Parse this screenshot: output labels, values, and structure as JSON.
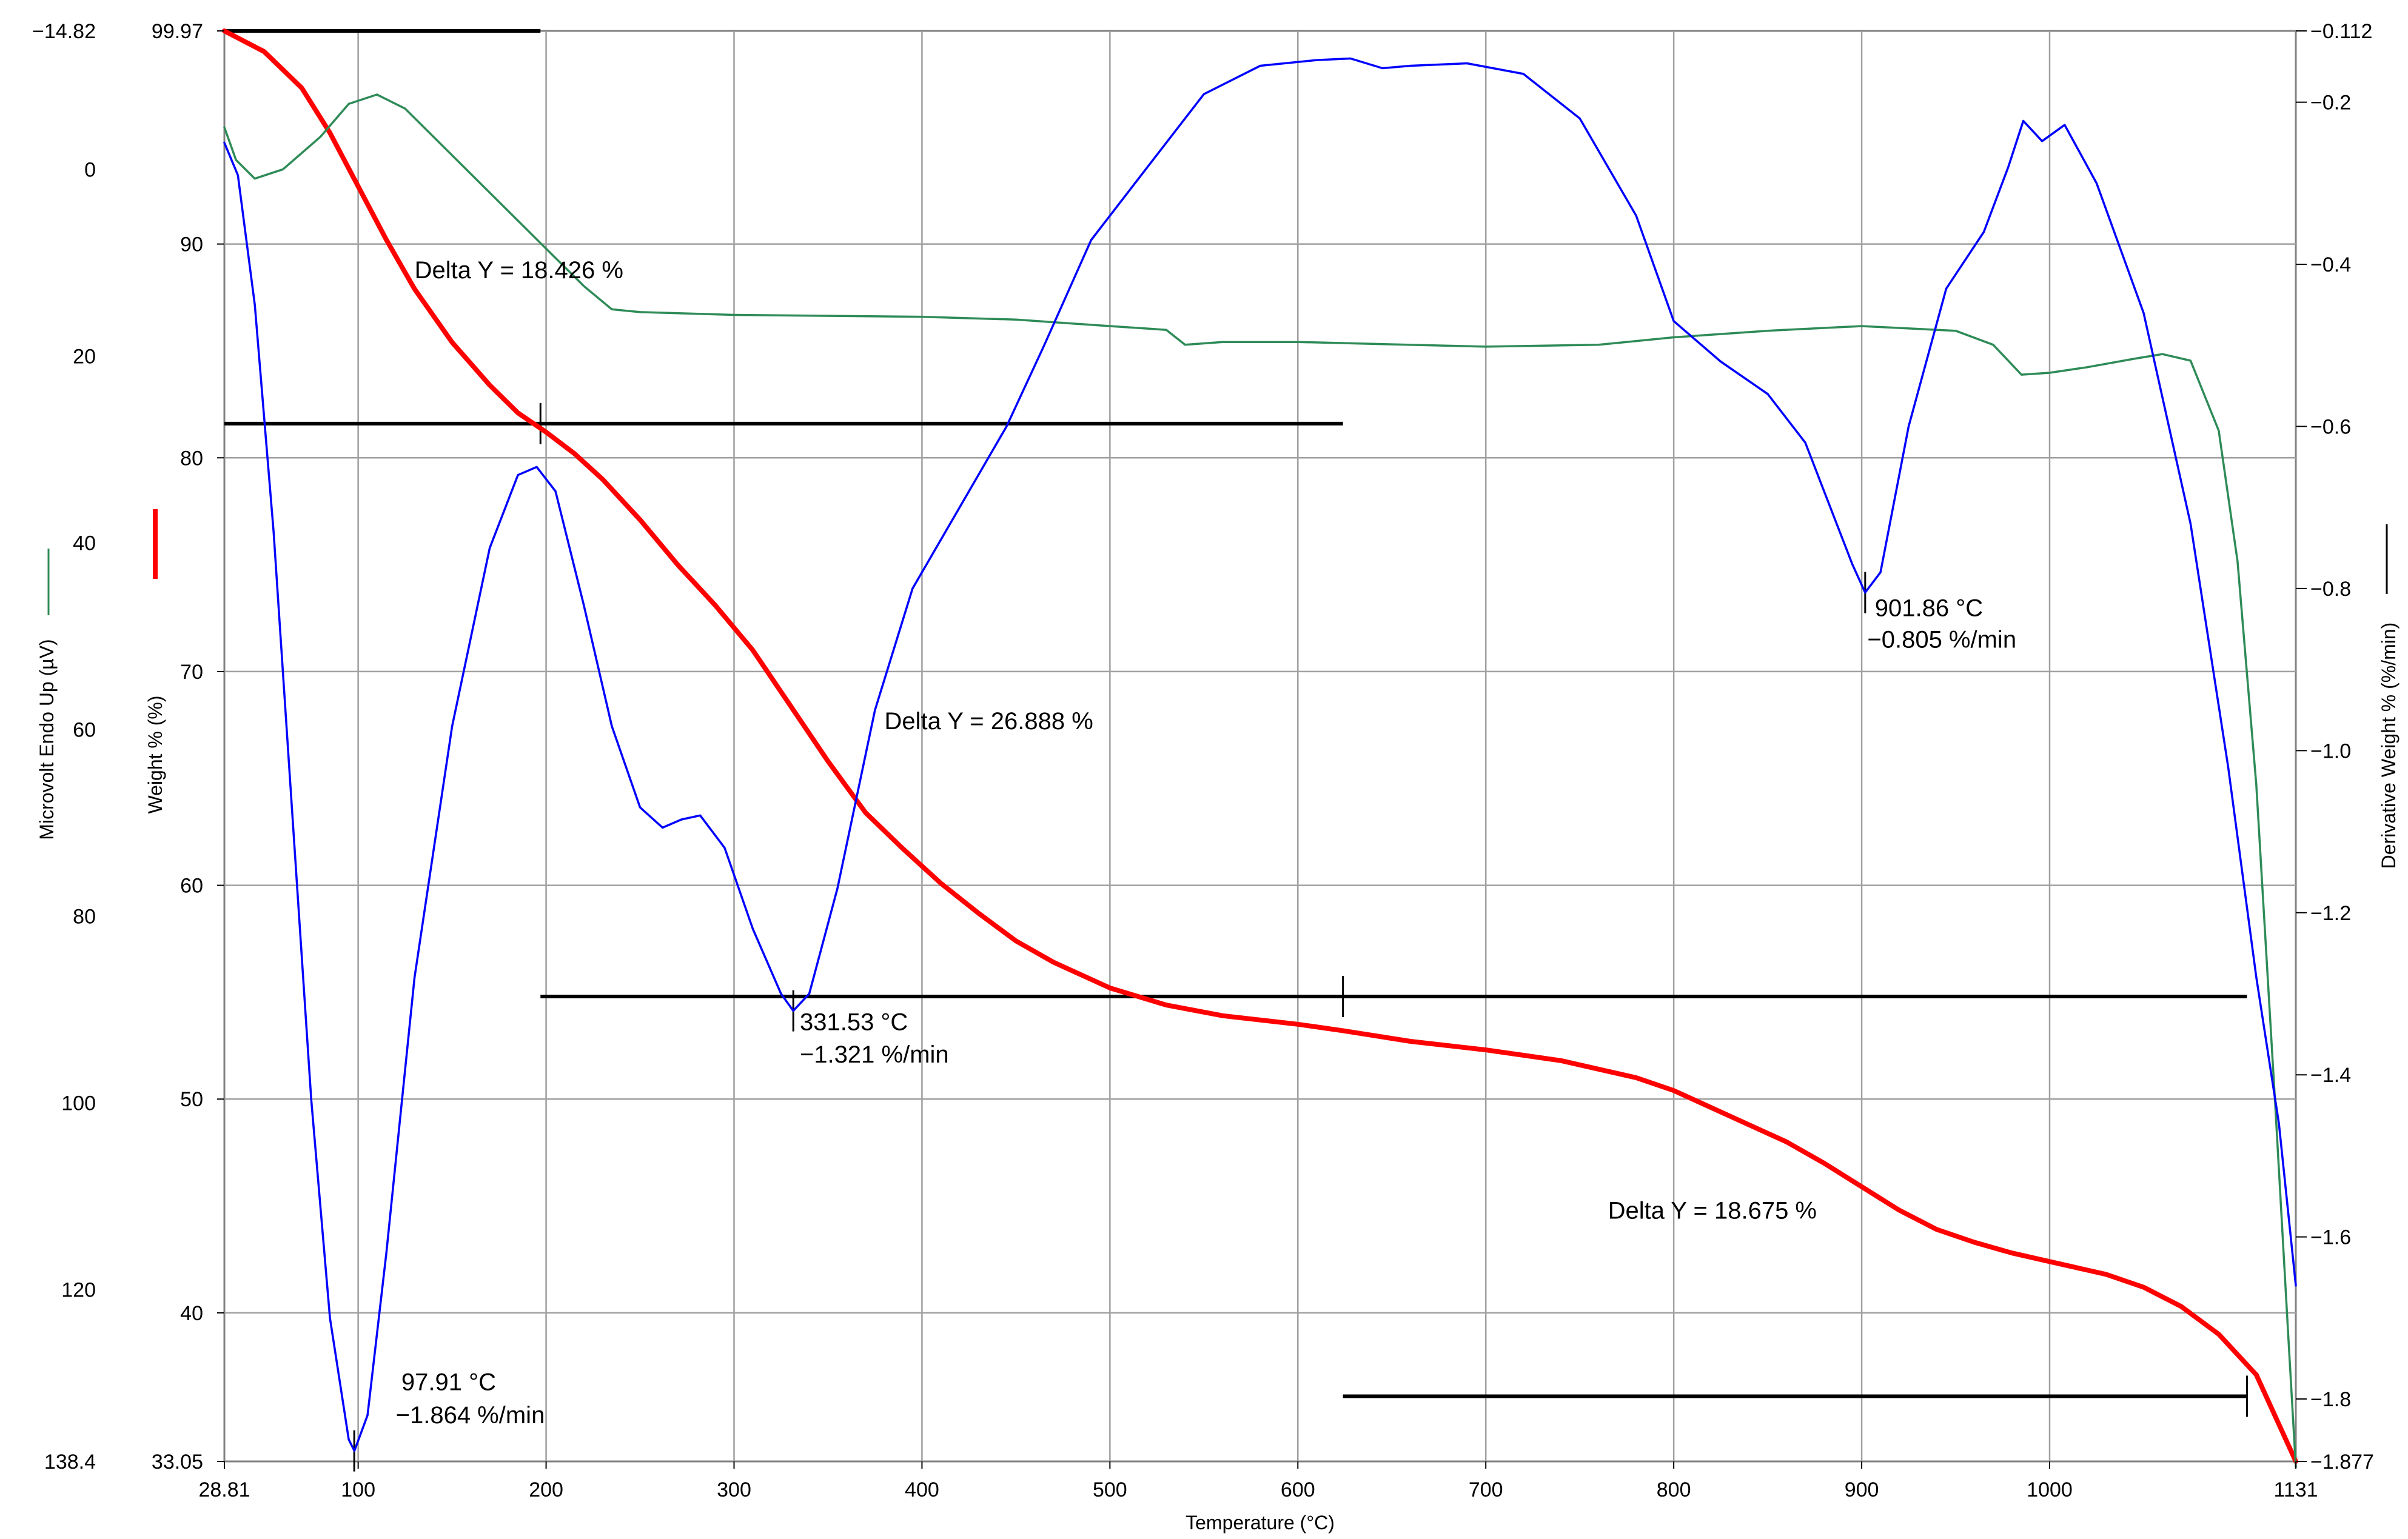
{
  "chart_data": {
    "type": "line",
    "title": "",
    "x_axis": {
      "label": "Temperature (°C)",
      "range": [
        28.81,
        1131
      ],
      "ticks": [
        100,
        200,
        300,
        400,
        500,
        600,
        700,
        800,
        900,
        1000
      ],
      "tick_labels": [
        "28.81",
        "100",
        "200",
        "300",
        "400",
        "500",
        "600",
        "700",
        "800",
        "900",
        "1000",
        "1131"
      ]
    },
    "axes": {
      "microvolt": {
        "label": "Microvolt Endo Up (µV)",
        "position": "far-left",
        "range_top": -14.82,
        "range_bottom": 138.4,
        "tick_labels": [
          "−14.82",
          "0",
          "20",
          "40",
          "60",
          "80",
          "100",
          "120",
          "138.4"
        ],
        "tick_values": [
          -14.82,
          0,
          20,
          40,
          60,
          80,
          100,
          120,
          138.4
        ]
      },
      "weight": {
        "label": "Weight % (%)",
        "position": "left",
        "range_top": 99.97,
        "range_bottom": 33.05,
        "tick_labels": [
          "99.97",
          "90",
          "80",
          "70",
          "60",
          "50",
          "40",
          "33.05"
        ],
        "tick_values": [
          99.97,
          90,
          80,
          70,
          60,
          50,
          40,
          33.05
        ]
      },
      "derivative": {
        "label": "Derivative Weight % (%/min)",
        "position": "right",
        "range_top": -0.112,
        "range_bottom": -1.877,
        "tick_labels": [
          "−0.112",
          "−0.2",
          "−0.4",
          "−0.6",
          "−0.8",
          "−1.0",
          "−1.2",
          "−1.4",
          "−1.6",
          "−1.8",
          "−1.877"
        ],
        "tick_values": [
          -0.112,
          -0.2,
          -0.4,
          -0.6,
          -0.8,
          -1.0,
          -1.2,
          -1.4,
          -1.6,
          -1.8,
          -1.877
        ]
      }
    },
    "series": [
      {
        "name": "Weight %",
        "axis": "weight",
        "color": "#ff0000",
        "points": [
          [
            28.81,
            99.97
          ],
          [
            50,
            99.0
          ],
          [
            70,
            97.3
          ],
          [
            85,
            95.2
          ],
          [
            100,
            92.7
          ],
          [
            115,
            90.2
          ],
          [
            130,
            87.9
          ],
          [
            150,
            85.4
          ],
          [
            170,
            83.4
          ],
          [
            185,
            82.1
          ],
          [
            200,
            81.2
          ],
          [
            215,
            80.2
          ],
          [
            230,
            79.0
          ],
          [
            250,
            77.1
          ],
          [
            270,
            75.0
          ],
          [
            290,
            73.1
          ],
          [
            310,
            71.0
          ],
          [
            330,
            68.4
          ],
          [
            350,
            65.8
          ],
          [
            370,
            63.4
          ],
          [
            390,
            61.7
          ],
          [
            410,
            60.1
          ],
          [
            430,
            58.7
          ],
          [
            450,
            57.4
          ],
          [
            470,
            56.4
          ],
          [
            500,
            55.2
          ],
          [
            530,
            54.4
          ],
          [
            560,
            53.9
          ],
          [
            600,
            53.5
          ],
          [
            624,
            53.2
          ],
          [
            660,
            52.7
          ],
          [
            700,
            52.3
          ],
          [
            740,
            51.8
          ],
          [
            780,
            51.0
          ],
          [
            800,
            50.4
          ],
          [
            830,
            49.2
          ],
          [
            860,
            48.0
          ],
          [
            880,
            47.0
          ],
          [
            900,
            45.9
          ],
          [
            920,
            44.8
          ],
          [
            940,
            43.9
          ],
          [
            960,
            43.3
          ],
          [
            980,
            42.8
          ],
          [
            1000,
            42.4
          ],
          [
            1030,
            41.8
          ],
          [
            1050,
            41.2
          ],
          [
            1070,
            40.3
          ],
          [
            1090,
            39.0
          ],
          [
            1110,
            37.1
          ],
          [
            1131,
            33.05
          ]
        ]
      },
      {
        "name": "Microvolt",
        "axis": "microvolt",
        "color": "#2e8b57",
        "points": [
          [
            28.81,
            -4.5
          ],
          [
            35,
            -1.0
          ],
          [
            45,
            1.0
          ],
          [
            60,
            0.0
          ],
          [
            80,
            -3.5
          ],
          [
            95,
            -7.0
          ],
          [
            110,
            -8.0
          ],
          [
            125,
            -6.5
          ],
          [
            150,
            -1.5
          ],
          [
            175,
            3.5
          ],
          [
            200,
            8.5
          ],
          [
            220,
            12.5
          ],
          [
            235,
            15.0
          ],
          [
            250,
            15.3
          ],
          [
            300,
            15.6
          ],
          [
            400,
            15.8
          ],
          [
            450,
            16.1
          ],
          [
            500,
            16.8
          ],
          [
            530,
            17.2
          ],
          [
            540,
            18.8
          ],
          [
            560,
            18.5
          ],
          [
            600,
            18.5
          ],
          [
            700,
            19.0
          ],
          [
            760,
            18.8
          ],
          [
            800,
            18.0
          ],
          [
            850,
            17.3
          ],
          [
            900,
            16.8
          ],
          [
            950,
            17.3
          ],
          [
            970,
            18.8
          ],
          [
            985,
            22.0
          ],
          [
            1000,
            21.8
          ],
          [
            1020,
            21.2
          ],
          [
            1045,
            20.3
          ],
          [
            1060,
            19.8
          ],
          [
            1075,
            20.5
          ],
          [
            1090,
            28.0
          ],
          [
            1100,
            42.0
          ],
          [
            1110,
            66.0
          ],
          [
            1120,
            100.0
          ],
          [
            1127,
            125.0
          ],
          [
            1131,
            139.0
          ]
        ]
      },
      {
        "name": "Derivative Weight %",
        "axis": "derivative",
        "color": "#0000ff",
        "points": [
          [
            28.81,
            -0.25
          ],
          [
            36,
            -0.29
          ],
          [
            45,
            -0.45
          ],
          [
            55,
            -0.73
          ],
          [
            65,
            -1.08
          ],
          [
            75,
            -1.43
          ],
          [
            85,
            -1.7
          ],
          [
            95,
            -1.85
          ],
          [
            98,
            -1.864
          ],
          [
            105,
            -1.82
          ],
          [
            115,
            -1.62
          ],
          [
            130,
            -1.28
          ],
          [
            150,
            -0.97
          ],
          [
            170,
            -0.75
          ],
          [
            185,
            -0.66
          ],
          [
            195,
            -0.65
          ],
          [
            205,
            -0.68
          ],
          [
            220,
            -0.82
          ],
          [
            235,
            -0.97
          ],
          [
            250,
            -1.07
          ],
          [
            262,
            -1.095
          ],
          [
            272,
            -1.085
          ],
          [
            282,
            -1.08
          ],
          [
            295,
            -1.12
          ],
          [
            310,
            -1.22
          ],
          [
            325,
            -1.3
          ],
          [
            331.53,
            -1.321
          ],
          [
            340,
            -1.3
          ],
          [
            355,
            -1.17
          ],
          [
            375,
            -0.95
          ],
          [
            395,
            -0.8
          ],
          [
            420,
            -0.7
          ],
          [
            445,
            -0.6
          ],
          [
            465,
            -0.5
          ],
          [
            490,
            -0.37
          ],
          [
            520,
            -0.28
          ],
          [
            550,
            -0.19
          ],
          [
            580,
            -0.155
          ],
          [
            610,
            -0.148
          ],
          [
            628,
            -0.146
          ],
          [
            645,
            -0.158
          ],
          [
            660,
            -0.155
          ],
          [
            690,
            -0.152
          ],
          [
            720,
            -0.165
          ],
          [
            750,
            -0.22
          ],
          [
            780,
            -0.34
          ],
          [
            800,
            -0.47
          ],
          [
            825,
            -0.52
          ],
          [
            850,
            -0.56
          ],
          [
            870,
            -0.62
          ],
          [
            885,
            -0.71
          ],
          [
            895,
            -0.77
          ],
          [
            901.86,
            -0.805
          ],
          [
            910,
            -0.78
          ],
          [
            925,
            -0.6
          ],
          [
            945,
            -0.43
          ],
          [
            965,
            -0.36
          ],
          [
            978,
            -0.28
          ],
          [
            986,
            -0.223
          ],
          [
            996,
            -0.248
          ],
          [
            1008,
            -0.228
          ],
          [
            1025,
            -0.3
          ],
          [
            1050,
            -0.46
          ],
          [
            1075,
            -0.72
          ],
          [
            1095,
            -1.02
          ],
          [
            1110,
            -1.28
          ],
          [
            1122,
            -1.46
          ],
          [
            1131,
            -1.66
          ]
        ]
      }
    ],
    "step_markers": [
      {
        "type": "hline",
        "axis": "weight",
        "y": 99.97,
        "x_start": 28.81,
        "x_end": 197
      },
      {
        "type": "hline",
        "axis": "weight",
        "y": 81.6,
        "x_start": 28.81,
        "x_end": 624
      },
      {
        "type": "hline",
        "axis": "weight",
        "y": 54.8,
        "x_start": 197,
        "x_end": 1105
      },
      {
        "type": "hline",
        "axis": "weight",
        "y": 36.1,
        "x_start": 624,
        "x_end": 1105
      },
      {
        "type": "tick",
        "axis": "weight",
        "x": 197,
        "y": 81.6
      },
      {
        "type": "tick",
        "axis": "weight",
        "x": 624,
        "y": 54.8
      },
      {
        "type": "tick",
        "axis": "weight",
        "x": 1105,
        "y": 36.1
      },
      {
        "type": "tick",
        "axis": "derivative",
        "x": 97.91,
        "y": -1.864
      },
      {
        "type": "tick",
        "axis": "derivative",
        "x": 331.53,
        "y": -1.321
      },
      {
        "type": "tick",
        "axis": "derivative",
        "x": 901.86,
        "y": -0.805
      }
    ],
    "annotations": [
      {
        "text": "Delta Y = 18.426 %",
        "x": 130,
        "axis": "weight",
        "y": 88.4
      },
      {
        "text": "Delta Y = 26.888 %",
        "x": 380,
        "axis": "weight",
        "y": 67.3
      },
      {
        "text": "Delta Y = 18.675 %",
        "x": 765,
        "axis": "weight",
        "y": 44.4
      },
      {
        "text": "97.91 °C",
        "x": 123,
        "axis": "derivative",
        "y": -1.789
      },
      {
        "text": "−1.864 %/min",
        "x": 120,
        "axis": "derivative",
        "y": -1.83
      },
      {
        "text": "331.53 °C",
        "x": 335,
        "axis": "derivative",
        "y": -1.345
      },
      {
        "text": "−1.321 %/min",
        "x": 335,
        "axis": "derivative",
        "y": -1.385
      },
      {
        "text": "901.86 °C",
        "x": 907,
        "axis": "derivative",
        "y": -0.834
      },
      {
        "text": "−0.805 %/min",
        "x": 903,
        "axis": "derivative",
        "y": -0.873
      }
    ],
    "grid": true
  }
}
